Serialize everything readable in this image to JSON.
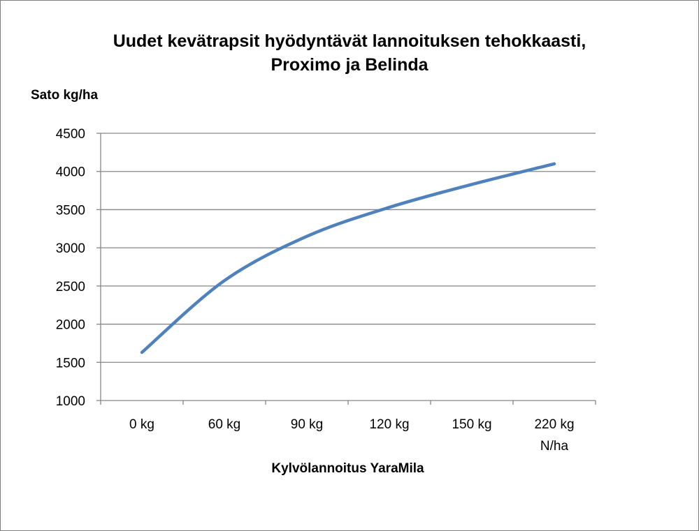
{
  "chart_data": {
    "type": "line",
    "title_line1": "Uudet kevätrapsit hyödyntävät lannoituksen tehokkaasti,",
    "title_line2": "Proximo ja Belinda",
    "ylabel": "Sato kg/ha",
    "xlabel": "Kylvölannoitus YaraMila",
    "categories": [
      "0 kg",
      "60 kg",
      "90 kg",
      "120 kg",
      "150 kg",
      "220 kg"
    ],
    "x_unit_label": "N/ha",
    "ylim": [
      1000,
      4500
    ],
    "yticks": [
      1000,
      1500,
      2000,
      2500,
      3000,
      3500,
      4000,
      4500
    ],
    "grid": true,
    "series": [
      {
        "color": "#4f81bd",
        "values": [
          1630,
          2570,
          3150,
          3530,
          3830,
          4100
        ]
      }
    ]
  }
}
